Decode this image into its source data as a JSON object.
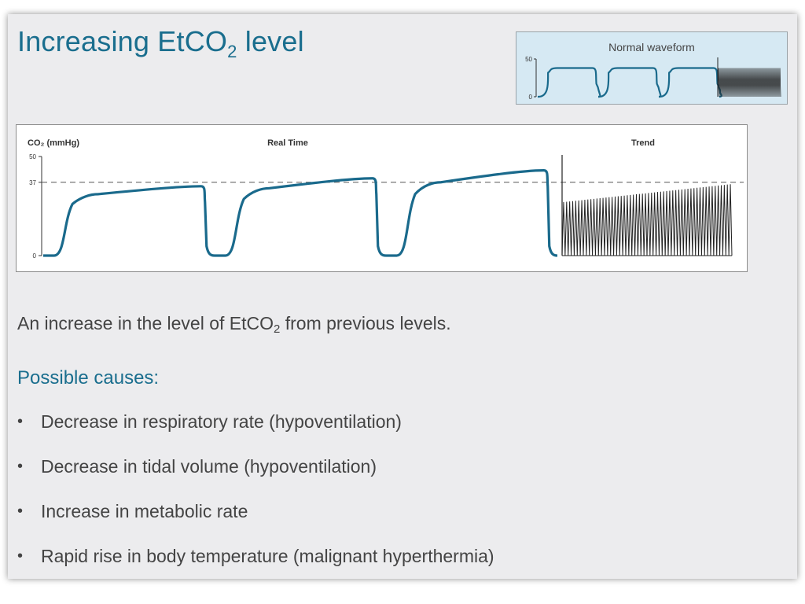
{
  "slide": {
    "title_main": "Increasing EtCO",
    "title_sub": "2",
    "title_tail": " level",
    "description_main": "An increase in the level of EtCO",
    "description_sub": "2",
    "description_tail": " from previous levels.",
    "causes_heading": "Possible causes:",
    "causes": [
      "Decrease in respiratory rate (hypoventilation)",
      "Decrease in tidal volume (hypoventilation)",
      "Increase in metabolic rate",
      "Rapid rise in body temperature (malignant hyperthermia)"
    ],
    "bullet": "•"
  },
  "colors": {
    "accent": "#1a6e8e",
    "waveform": "#1a6a8c",
    "trend": "#222222",
    "normal_panel_bg": "#d6e9f3"
  },
  "chart_data": [
    {
      "type": "line",
      "title": "Normal waveform",
      "ylim": [
        0,
        50
      ],
      "yticks": [
        "50",
        "0"
      ],
      "realtime": {
        "breaths": 3,
        "plateau_start": [
          38,
          38,
          38
        ],
        "plateau_end": [
          38,
          38,
          38
        ],
        "baseline": 0
      },
      "trend": {
        "count": 40,
        "peak_start": 38,
        "peak_end": 38,
        "trough": 0
      }
    },
    {
      "type": "line",
      "ylabel": "CO₂ (mmHg)",
      "panel_labels": [
        "Real Time",
        "Trend"
      ],
      "ylim": [
        0,
        50
      ],
      "yticks": [
        "50",
        "37",
        "0"
      ],
      "reference_line": 37,
      "realtime": {
        "breaths": 3,
        "plateau_start": [
          31,
          34,
          37
        ],
        "plateau_end": [
          35,
          39,
          43
        ],
        "baseline": 0
      },
      "trend": {
        "count": 56,
        "peak_start": 27,
        "peak_end": 36,
        "trough": 0
      }
    }
  ]
}
